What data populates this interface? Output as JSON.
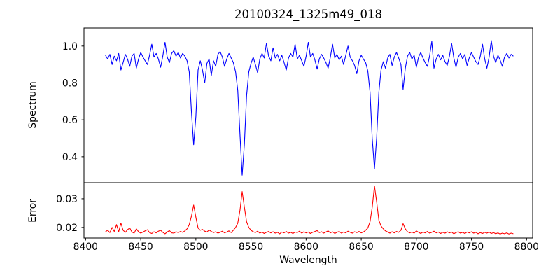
{
  "colors": {
    "background": "#ffffff",
    "axis": "#000000",
    "spectrum_line": "#0000ff",
    "error_line": "#ff0000"
  },
  "chart_data": {
    "type": "line",
    "title": "20100324_1325m49_018",
    "xlabel": "Wavelength",
    "xlim": [
      8398.5,
      8805.5
    ],
    "xticks": [
      {
        "value": 8400,
        "label": "8400"
      },
      {
        "value": 8450,
        "label": "8450"
      },
      {
        "value": 8500,
        "label": "8500"
      },
      {
        "value": 8550,
        "label": "8550"
      },
      {
        "value": 8600,
        "label": "8600"
      },
      {
        "value": 8650,
        "label": "8650"
      },
      {
        "value": 8700,
        "label": "8700"
      },
      {
        "value": 8750,
        "label": "8750"
      },
      {
        "value": 8800,
        "label": "8800"
      }
    ],
    "x_start": 8418,
    "x_step": 2,
    "panels": [
      {
        "ylabel": "Spectrum",
        "color": "#0000ff",
        "ylim": [
          0.259,
          1.098
        ],
        "yticks": [
          {
            "value": 0.4,
            "label": "0.4"
          },
          {
            "value": 0.6,
            "label": "0.6"
          },
          {
            "value": 0.8,
            "label": "0.8"
          },
          {
            "value": 1.0,
            "label": "1.0"
          }
        ],
        "notes": "normalized stellar spectrum; Ca II triplet absorption lines at 8498, 8542, 8662; narrow line at 8688"
      },
      {
        "ylabel": "Error",
        "color": "#ff0000",
        "ylim": [
          0.0163,
          0.0356
        ],
        "yticks": [
          {
            "value": 0.02,
            "label": "0.02"
          },
          {
            "value": 0.03,
            "label": "0.03"
          }
        ],
        "notes": "error spectrum; baseline ~0.0185 with peaks at the absorption-line cores"
      }
    ],
    "spectrum_values": [
      0.95,
      0.93,
      0.955,
      0.9,
      0.945,
      0.92,
      0.96,
      0.87,
      0.91,
      0.955,
      0.93,
      0.89,
      0.945,
      0.96,
      0.88,
      0.93,
      0.965,
      0.94,
      0.92,
      0.9,
      0.95,
      1.01,
      0.94,
      0.96,
      0.93,
      0.885,
      0.945,
      1.02,
      0.94,
      0.91,
      0.96,
      0.975,
      0.945,
      0.965,
      0.935,
      0.96,
      0.945,
      0.92,
      0.86,
      0.64,
      0.465,
      0.62,
      0.87,
      0.92,
      0.87,
      0.8,
      0.905,
      0.93,
      0.84,
      0.92,
      0.89,
      0.955,
      0.97,
      0.94,
      0.89,
      0.93,
      0.96,
      0.935,
      0.91,
      0.86,
      0.76,
      0.52,
      0.3,
      0.47,
      0.73,
      0.86,
      0.905,
      0.94,
      0.9,
      0.855,
      0.93,
      0.96,
      0.935,
      1.015,
      0.945,
      0.92,
      0.99,
      0.935,
      0.955,
      0.92,
      0.95,
      0.91,
      0.87,
      0.935,
      0.96,
      0.94,
      1.01,
      0.93,
      0.95,
      0.92,
      0.89,
      0.945,
      1.02,
      0.94,
      0.96,
      0.925,
      0.875,
      0.93,
      0.955,
      0.935,
      0.91,
      0.88,
      0.94,
      1.01,
      0.935,
      0.955,
      0.925,
      0.945,
      0.9,
      0.95,
      1.0,
      0.94,
      0.92,
      0.895,
      0.85,
      0.92,
      0.95,
      0.93,
      0.91,
      0.865,
      0.75,
      0.5,
      0.335,
      0.5,
      0.75,
      0.87,
      0.915,
      0.88,
      0.935,
      0.955,
      0.895,
      0.94,
      0.965,
      0.935,
      0.9,
      0.765,
      0.88,
      0.945,
      0.965,
      0.93,
      0.95,
      0.885,
      0.94,
      0.965,
      0.935,
      0.91,
      0.89,
      0.945,
      1.025,
      0.88,
      0.93,
      0.955,
      0.925,
      0.95,
      0.915,
      0.895,
      0.945,
      1.015,
      0.935,
      0.885,
      0.94,
      0.96,
      0.93,
      0.955,
      0.895,
      0.935,
      0.965,
      0.94,
      0.915,
      0.9,
      0.945,
      1.01,
      0.93,
      0.88,
      0.94,
      1.03,
      0.945,
      0.91,
      0.95,
      0.925,
      0.89,
      0.94,
      0.96,
      0.935,
      0.955,
      0.945
    ],
    "error_values": [
      0.0185,
      0.019,
      0.0182,
      0.02,
      0.0186,
      0.021,
      0.0185,
      0.0215,
      0.019,
      0.0183,
      0.0192,
      0.0198,
      0.0184,
      0.018,
      0.0195,
      0.0185,
      0.018,
      0.0184,
      0.0188,
      0.0192,
      0.0182,
      0.0179,
      0.0185,
      0.0181,
      0.0187,
      0.019,
      0.0183,
      0.0178,
      0.0184,
      0.0189,
      0.0181,
      0.018,
      0.0185,
      0.0182,
      0.0186,
      0.0183,
      0.0188,
      0.0195,
      0.021,
      0.024,
      0.0278,
      0.0235,
      0.0198,
      0.019,
      0.0193,
      0.0187,
      0.0184,
      0.0191,
      0.0186,
      0.0182,
      0.0185,
      0.018,
      0.0183,
      0.0187,
      0.0181,
      0.0184,
      0.0188,
      0.0182,
      0.019,
      0.02,
      0.0215,
      0.026,
      0.0325,
      0.027,
      0.022,
      0.02,
      0.019,
      0.0185,
      0.0182,
      0.0187,
      0.018,
      0.0184,
      0.0179,
      0.0183,
      0.0186,
      0.0181,
      0.0185,
      0.018,
      0.0183,
      0.0178,
      0.0184,
      0.0181,
      0.0186,
      0.018,
      0.0183,
      0.0179,
      0.0184,
      0.0182,
      0.0187,
      0.018,
      0.0185,
      0.0181,
      0.0184,
      0.0179,
      0.0183,
      0.0186,
      0.0189,
      0.0182,
      0.0185,
      0.018,
      0.0184,
      0.0188,
      0.0181,
      0.0185,
      0.0179,
      0.0183,
      0.0186,
      0.018,
      0.0184,
      0.0181,
      0.0187,
      0.0183,
      0.018,
      0.0185,
      0.0182,
      0.0186,
      0.0181,
      0.0184,
      0.019,
      0.0198,
      0.022,
      0.027,
      0.0345,
      0.029,
      0.0225,
      0.0205,
      0.0195,
      0.0188,
      0.0184,
      0.018,
      0.0185,
      0.0181,
      0.0186,
      0.0183,
      0.019,
      0.0213,
      0.0195,
      0.0185,
      0.0181,
      0.0184,
      0.018,
      0.0188,
      0.0183,
      0.0179,
      0.0184,
      0.0181,
      0.0186,
      0.018,
      0.0183,
      0.0187,
      0.0181,
      0.0184,
      0.0179,
      0.0183,
      0.018,
      0.0185,
      0.0181,
      0.0184,
      0.0178,
      0.0182,
      0.0185,
      0.018,
      0.0183,
      0.0179,
      0.0184,
      0.0181,
      0.0185,
      0.018,
      0.0183,
      0.0178,
      0.0182,
      0.0179,
      0.0183,
      0.018,
      0.0184,
      0.0179,
      0.0182,
      0.0178,
      0.0181,
      0.0177,
      0.018,
      0.0178,
      0.0181,
      0.0177,
      0.018,
      0.0178
    ]
  }
}
